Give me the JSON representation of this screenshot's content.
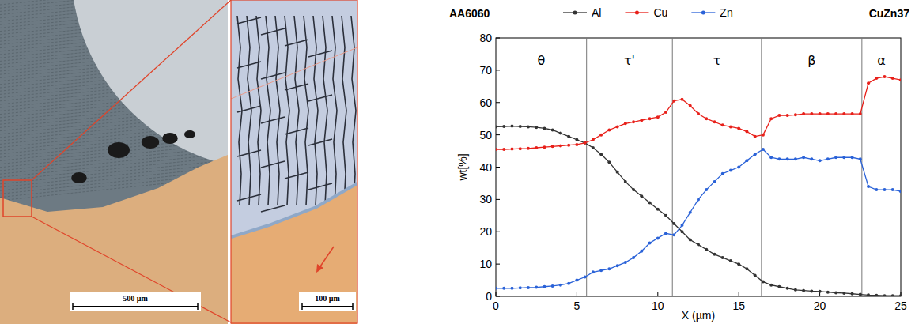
{
  "micrographs": [
    {
      "scale_label": "500 µm"
    },
    {
      "scale_label": "100 µm"
    }
  ],
  "chart_data": {
    "type": "line",
    "annotations": [
      "AA6060",
      "CuZn37"
    ],
    "x_label": "X (µm)",
    "y_label": "wt[%]",
    "xlim": [
      0,
      25
    ],
    "xticks": [
      0,
      5,
      10,
      15,
      20,
      25
    ],
    "ylim": [
      0,
      80
    ],
    "yticks": [
      0,
      10,
      20,
      30,
      40,
      50,
      60,
      70,
      80
    ],
    "grid": false,
    "legend": "top",
    "marker": "circle",
    "phases": [
      "θ",
      "τ'",
      "τ",
      "β",
      "α"
    ],
    "phase_boundaries": [
      5.6,
      10.9,
      16.4,
      22.6
    ],
    "x": [
      0,
      0.5,
      1,
      1.5,
      2,
      2.5,
      3,
      3.5,
      4,
      4.5,
      5,
      5.5,
      6,
      6.5,
      7,
      7.5,
      8,
      8.5,
      9,
      9.5,
      10,
      10.5,
      11,
      11.5,
      12,
      12.5,
      13,
      13.5,
      14,
      14.5,
      15,
      15.5,
      16,
      16.5,
      17,
      17.5,
      18,
      18.5,
      19,
      19.5,
      20,
      20.5,
      21,
      21.5,
      22,
      22.5,
      23,
      23.5,
      24,
      24.5,
      25
    ],
    "series": [
      {
        "name": "Al",
        "color": "#333333",
        "values": [
          52.5,
          52.6,
          52.7,
          52.6,
          52.5,
          52.3,
          52,
          51.5,
          50.5,
          49.5,
          48.5,
          47.5,
          46,
          44,
          41.5,
          38.5,
          35.5,
          33,
          31,
          29,
          27,
          25,
          22.5,
          20,
          17.5,
          16,
          14.5,
          13,
          12,
          11,
          10,
          8.5,
          6.5,
          4.5,
          3.5,
          3,
          2.5,
          2,
          1.8,
          1.6,
          1.5,
          1.3,
          1.1,
          1,
          0.8,
          0.6,
          0.4,
          0.3,
          0.2,
          0.2,
          0.2
        ]
      },
      {
        "name": "Cu",
        "color": "#e8201a",
        "values": [
          45.5,
          45.5,
          45.6,
          45.7,
          45.8,
          46,
          46.2,
          46.4,
          46.6,
          46.8,
          47,
          47.5,
          48.5,
          50,
          51.5,
          52.5,
          53.5,
          54,
          54.5,
          55,
          55.5,
          57,
          60.5,
          61,
          59,
          56.5,
          55,
          54,
          53,
          52.5,
          52,
          51,
          49.5,
          50,
          55,
          56,
          56,
          56.2,
          56.5,
          56.5,
          56.5,
          56.5,
          56.5,
          56.5,
          56.5,
          56.5,
          66,
          67.5,
          68,
          67.5,
          67
        ]
      },
      {
        "name": "Zn",
        "color": "#2a62d8",
        "values": [
          2.5,
          2.5,
          2.5,
          2.6,
          2.7,
          2.8,
          3,
          3.2,
          3.5,
          4,
          5,
          6,
          7.5,
          8,
          8.5,
          9.5,
          10.5,
          12,
          14,
          16.5,
          18,
          19.5,
          19,
          22,
          26,
          30,
          33,
          35.5,
          38,
          39,
          40,
          42,
          44,
          45.5,
          43,
          42.5,
          42.5,
          42.5,
          43,
          42.5,
          42,
          42.5,
          43,
          43,
          43,
          42.5,
          34,
          33,
          33,
          33,
          32.5
        ]
      }
    ]
  }
}
